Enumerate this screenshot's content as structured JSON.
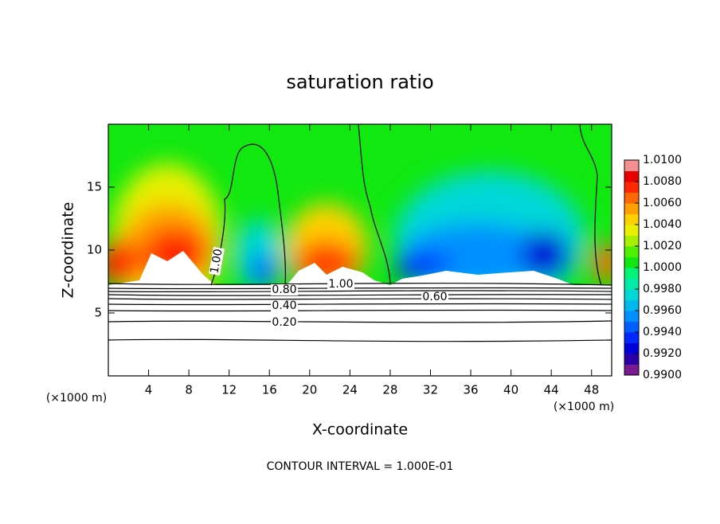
{
  "chart_data": {
    "type": "contour",
    "title": "saturation ratio",
    "xlabel": "X-coordinate",
    "ylabel": "Z-coordinate",
    "x_unit": "(×1000 m)",
    "y_unit": "(×1000 m)",
    "annotation": "CONTOUR INTERVAL = 1.000E-01",
    "xlim": [
      0,
      50
    ],
    "xticks": [
      4,
      8,
      12,
      16,
      20,
      24,
      28,
      32,
      36,
      40,
      44,
      48
    ],
    "ylim": [
      0,
      20
    ],
    "yticks": [
      5,
      10,
      15
    ],
    "contours": [
      {
        "value": 1.0,
        "label": "1.00"
      },
      {
        "value": 1.0,
        "label": "1.00"
      },
      {
        "value": 0.8,
        "label": "0.80"
      },
      {
        "value": 0.6,
        "label": "0.60"
      },
      {
        "value": 0.4,
        "label": "0.40"
      },
      {
        "value": 0.2,
        "label": "0.20"
      }
    ],
    "colorbar": {
      "lim": [
        0.99,
        1.01
      ],
      "ticks": [
        {
          "value": 0.99,
          "label": "0.9900"
        },
        {
          "value": 0.992,
          "label": "0.9920"
        },
        {
          "value": 0.994,
          "label": "0.9940"
        },
        {
          "value": 0.996,
          "label": "0.9960"
        },
        {
          "value": 0.998,
          "label": "0.9980"
        },
        {
          "value": 1.0,
          "label": "1.0000"
        },
        {
          "value": 1.002,
          "label": "1.0020"
        },
        {
          "value": 1.004,
          "label": "1.0040"
        },
        {
          "value": 1.006,
          "label": "1.0060"
        },
        {
          "value": 1.008,
          "label": "1.0080"
        },
        {
          "value": 1.01,
          "label": "1.0100"
        }
      ],
      "colors": [
        "#7a1a90",
        "#2a00a8",
        "#0000d8",
        "#0028ff",
        "#0060ff",
        "#0090ff",
        "#00b8f0",
        "#00d8d8",
        "#00eaa8",
        "#00f478",
        "#10e810",
        "#50f000",
        "#a8f000",
        "#e8f000",
        "#ffd000",
        "#ffa000",
        "#ff6800",
        "#ff2800",
        "#e80000",
        "#f49090"
      ]
    }
  }
}
